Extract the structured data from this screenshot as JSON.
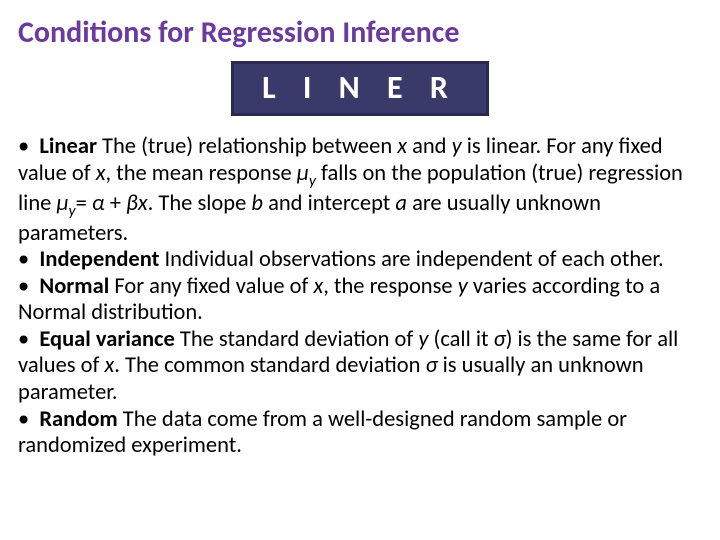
{
  "title": {
    "text": "Conditions for Regression Inference",
    "color": "#6a3a9c"
  },
  "acronym": {
    "text": "L I N E R",
    "text_color": "#ffffff",
    "bg_color": "#3a3a6a",
    "border_color": "#2a2a50"
  },
  "items": [
    {
      "term": "Linear",
      "body_html": " The (true) relationship between <span class=\"italic\">x</span> and <span class=\"italic\">y</span> is linear. For any fixed value of <span class=\"italic\">x</span>, the mean response <span class=\"italic\">µ</span><span class=\"sub italic\">y</span> falls on the population (true) regression line <span class=\"italic\">µ</span><span class=\"sub italic\">y</span>= <span class=\"italic\">α</span> + <span class=\"italic\">βx</span>. The slope <span class=\"italic\">b</span> and intercept <span class=\"italic\">a</span> are usually unknown parameters."
    },
    {
      "term": "Independent",
      "body_html": " Individual observations are independent of each other."
    },
    {
      "term": "Normal",
      "body_html": " For any fixed value of <span class=\"italic\">x</span>, the response <span class=\"italic\">y</span> varies according to a Normal distribution."
    },
    {
      "term": "Equal variance",
      "body_html": " The standard deviation of <span class=\"italic\">y</span> (call it <span class=\"italic\">σ</span>) is the same for all values of <span class=\"italic\">x</span>. The common standard deviation <span class=\"italic\">σ</span> is usually an unknown parameter."
    },
    {
      "term": "Random",
      "body_html": " The data come from a well-designed random sample or randomized experiment."
    }
  ],
  "body_color": "#000000",
  "background_color": "#ffffff"
}
